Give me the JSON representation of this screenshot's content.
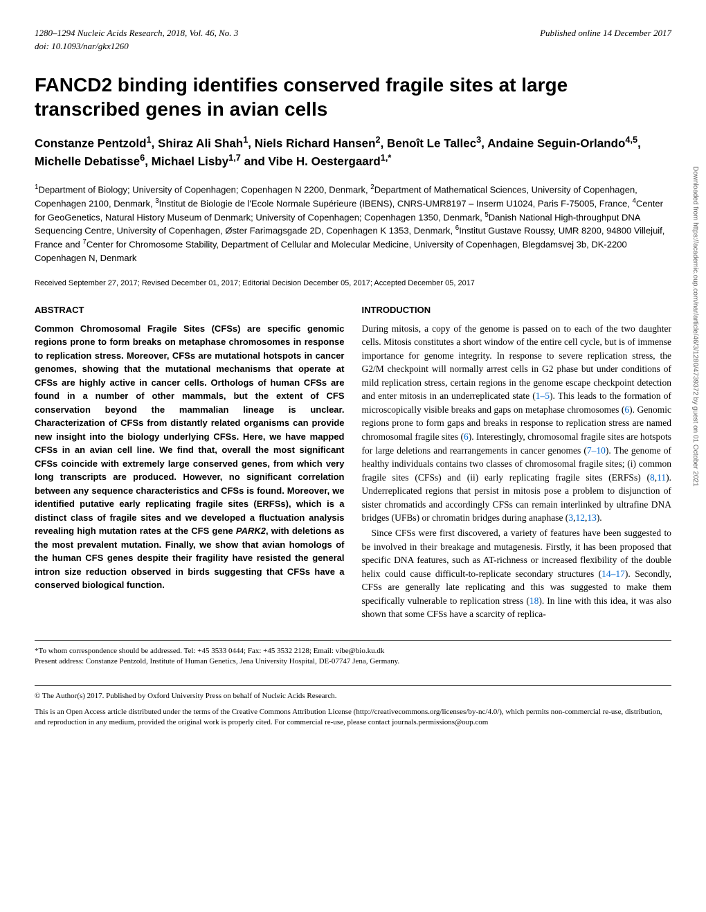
{
  "header": {
    "left": "1280–1294   Nucleic Acids Research, 2018, Vol. 46, No. 3",
    "right": "Published online 14 December 2017",
    "doi": "doi: 10.1093/nar/gkx1260"
  },
  "title": "FANCD2 binding identifies conserved fragile sites at large transcribed genes in avian cells",
  "authors_html": "Constanze Pentzold<sup>1</sup>, Shiraz Ali Shah<sup>1</sup>, Niels Richard Hansen<sup>2</sup>, Benoît Le Tallec<sup>3</sup>, Andaine Seguin-Orlando<sup>4,5</sup>, Michelle Debatisse<sup>6</sup>, Michael Lisby<sup>1,7</sup>  and Vibe H. Oestergaard<sup>1,*</sup>",
  "affiliations_html": "<sup>1</sup>Department of Biology; University of Copenhagen; Copenhagen N 2200, Denmark, <sup>2</sup>Department of Mathematical Sciences, University of Copenhagen, Copenhagen 2100, Denmark, <sup>3</sup>Institut de Biologie de l'Ecole Normale Supérieure (IBENS), CNRS-UMR8197 – Inserm U1024, Paris F-75005, France, <sup>4</sup>Center for GeoGenetics, Natural History Museum of Denmark; University of Copenhagen; Copenhagen 1350, Denmark, <sup>5</sup>Danish National High-throughput DNA Sequencing Centre, University of Copenhagen, Øster Farimagsgade 2D, Copenhagen K 1353, Denmark, <sup>6</sup>Institut Gustave Roussy, UMR 8200, 94800 Villejuif, France and <sup>7</sup>Center for Chromosome Stability, Department of Cellular and Molecular Medicine, University of Copenhagen, Blegdamsvej 3b, DK-2200 Copenhagen N, Denmark",
  "received": "Received September 27, 2017; Revised December 01, 2017; Editorial Decision December 05, 2017; Accepted December 05, 2017",
  "abstract": {
    "title": "ABSTRACT",
    "text": "Common Chromosomal Fragile Sites (CFSs) are specific genomic regions prone to form breaks on metaphase chromosomes in response to replication stress. Moreover, CFSs are mutational hotspots in cancer genomes, showing that the mutational mechanisms that operate at CFSs are highly active in cancer cells. Orthologs of human CFSs are found in a number of other mammals, but the extent of CFS conservation beyond the mammalian lineage is unclear. Characterization of CFSs from distantly related organisms can provide new insight into the biology underlying CFSs. Here, we have mapped CFSs in an avian cell line. We find that, overall the most significant CFSs coincide with extremely large conserved genes, from which very long transcripts are produced. However, no significant correlation between any sequence characteristics and CFSs is found. Moreover, we identified putative early replicating fragile sites (ERFSs), which is a distinct class of fragile sites and we developed a fluctuation analysis revealing high mutation rates at the CFS gene PARK2, with deletions as the most prevalent mutation. Finally, we show that avian homologs of the human CFS genes despite their fragility have resisted the general intron size reduction observed in birds suggesting that CFSs have a conserved biological function."
  },
  "introduction": {
    "title": "INTRODUCTION",
    "p1_html": "During mitosis, a copy of the genome is passed on to each of the two daughter cells. Mitosis constitutes a short window of the entire cell cycle, but is of immense importance for genome integrity. In response to severe replication stress, the G2/M checkpoint will normally arrest cells in G2 phase but under conditions of mild replication stress, certain regions in the genome escape checkpoint detection and enter mitosis in an underreplicated state (<span class=\"ref\">1–5</span>). This leads to the formation of microscopically visible breaks and gaps on metaphase chromosomes (<span class=\"ref\">6</span>). Genomic regions prone to form gaps and breaks in response to replication stress are named chromosomal fragile sites (<span class=\"ref\">6</span>). Interestingly, chromosomal fragile sites are hotspots for large deletions and rearrangements in cancer genomes (<span class=\"ref\">7–10</span>). The genome of healthy individuals contains two classes of chromosomal fragile sites; (i) common fragile sites (CFSs) and (ii) early replicating fragile sites (ERFSs) (<span class=\"ref\">8</span>,<span class=\"ref\">11</span>). Underreplicated regions that persist in mitosis pose a problem to disjunction of sister chromatids and accordingly CFSs can remain interlinked by ultrafine DNA bridges (UFBs) or chromatin bridges during anaphase (<span class=\"ref\">3</span>,<span class=\"ref\">12</span>,<span class=\"ref\">13</span>).",
    "p2_html": "Since CFSs were first discovered, a variety of features have been suggested to be involved in their breakage and mutagenesis. Firstly, it has been proposed that specific DNA features, such as AT-richness or increased flexibility of the double helix could cause difficult-to-replicate secondary structures (<span class=\"ref\">14–17</span>). Secondly, CFSs are generally late replicating and this was suggested to make them specifically vulnerable to replication stress (<span class=\"ref\">18</span>). In line with this idea, it was also shown that some CFSs have a scarcity of replica-"
  },
  "footnote": {
    "correspondence": "*To whom correspondence should be addressed. Tel: +45 3533 0444; Fax: +45 3532 2128; Email: vibe@bio.ku.dk",
    "present": "Present address: Constanze Pentzold, Institute of Human Genetics, Jena University Hospital, DE-07747 Jena, Germany."
  },
  "copyright": {
    "line1": "© The Author(s) 2017. Published by Oxford University Press on behalf of Nucleic Acids Research.",
    "line2": "This is an Open Access article distributed under the terms of the Creative Commons Attribution License (http://creativecommons.org/licenses/by-nc/4.0/), which permits non-commercial re-use, distribution, and reproduction in any medium, provided the original work is properly cited. For commercial re-use, please contact journals.permissions@oup.com"
  },
  "sidebar": "Downloaded from https://academic.oup.com/nar/article/46/3/1280/4739372 by guest on 01 October 2021"
}
